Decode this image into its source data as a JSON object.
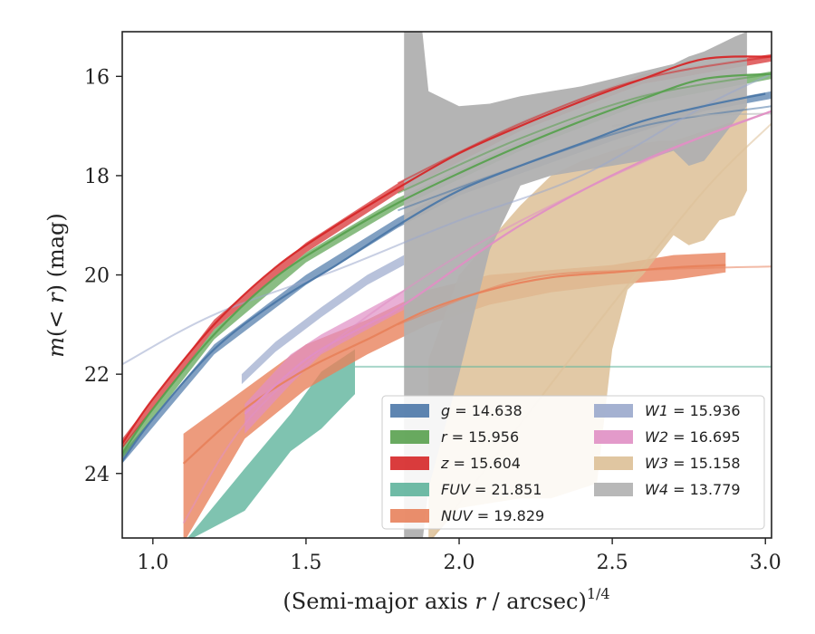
{
  "chart_data": {
    "type": "line",
    "title": "",
    "xlabel": "(Semi-major axis r / arcsec)^{1/4}",
    "xlabel_parts": {
      "main": "(Semi-major axis ",
      "var": "r",
      "rest": " / arcsec)",
      "sup": "1/4"
    },
    "ylabel": "m(< r) (mag)",
    "ylabel_parts": {
      "var": "m",
      "open": "(",
      "mid": "< r",
      "close": ") (mag)"
    },
    "xlim": [
      0.9,
      3.02
    ],
    "ylim": [
      25.3,
      15.1
    ],
    "y_inverted": true,
    "xticks": [
      1.0,
      1.5,
      2.0,
      2.5,
      3.0
    ],
    "xtick_labels": [
      "1.0",
      "1.5",
      "2.0",
      "2.5",
      "3.0"
    ],
    "yticks": [
      16,
      18,
      20,
      22,
      24
    ],
    "ytick_labels": [
      "16",
      "18",
      "20",
      "22",
      "24"
    ],
    "grid": false,
    "legend_position": "lower-right",
    "legend_columns": 2,
    "series": [
      {
        "key": "g",
        "name": "g = 14.638",
        "label_var": "g",
        "label_val": "= 14.638",
        "color": "#4c78a8",
        "curve": [
          [
            0.9,
            23.75
          ],
          [
            1.0,
            22.9
          ],
          [
            1.2,
            21.5
          ],
          [
            1.4,
            20.55
          ],
          [
            1.6,
            19.8
          ],
          [
            1.8,
            19.0
          ],
          [
            2.0,
            18.3
          ],
          [
            2.2,
            17.8
          ],
          [
            2.4,
            17.35
          ],
          [
            2.6,
            16.9
          ],
          [
            2.8,
            16.6
          ],
          [
            3.0,
            16.35
          ]
        ],
        "band": [
          [
            0.9,
            23.6,
            23.8
          ],
          [
            1.2,
            21.4,
            21.6
          ],
          [
            1.5,
            20.0,
            20.2
          ],
          [
            1.8,
            18.85,
            19.05
          ],
          [
            2.0,
            18.2,
            18.4
          ],
          [
            2.5,
            17.1,
            17.3
          ],
          [
            2.8,
            16.55,
            16.7
          ],
          [
            3.02,
            16.3,
            16.45
          ]
        ],
        "extrap": [
          [
            1.8,
            18.7
          ],
          [
            2.2,
            17.8
          ],
          [
            2.6,
            17.0
          ],
          [
            3.02,
            16.6
          ]
        ]
      },
      {
        "key": "r",
        "name": "r = 15.956",
        "label_var": "r",
        "label_val": "= 15.956",
        "color": "#59a14f",
        "curve": [
          [
            0.9,
            23.6
          ],
          [
            1.0,
            22.7
          ],
          [
            1.2,
            21.2
          ],
          [
            1.4,
            20.05
          ],
          [
            1.6,
            19.25
          ],
          [
            1.8,
            18.55
          ],
          [
            2.0,
            17.95
          ],
          [
            2.2,
            17.4
          ],
          [
            2.4,
            16.9
          ],
          [
            2.6,
            16.45
          ],
          [
            2.8,
            16.05
          ],
          [
            3.02,
            15.95
          ]
        ],
        "band": [
          [
            0.9,
            23.45,
            23.7
          ],
          [
            1.2,
            21.1,
            21.3
          ],
          [
            1.5,
            19.55,
            19.75
          ],
          [
            1.8,
            18.45,
            18.65
          ],
          [
            2.2,
            17.3,
            17.5
          ],
          [
            2.6,
            16.35,
            16.55
          ],
          [
            3.02,
            15.9,
            16.05
          ]
        ],
        "extrap": [
          [
            1.8,
            18.35
          ],
          [
            2.2,
            17.25
          ],
          [
            2.6,
            16.4
          ],
          [
            3.02,
            15.95
          ]
        ]
      },
      {
        "key": "z",
        "name": "z = 15.604",
        "label_var": "z",
        "label_val": "= 15.604",
        "color": "#d62728",
        "curve": [
          [
            0.9,
            23.4
          ],
          [
            1.0,
            22.5
          ],
          [
            1.2,
            21.0
          ],
          [
            1.4,
            19.85
          ],
          [
            1.6,
            19.0
          ],
          [
            1.8,
            18.25
          ],
          [
            2.0,
            17.55
          ],
          [
            2.2,
            17.0
          ],
          [
            2.4,
            16.5
          ],
          [
            2.6,
            16.05
          ],
          [
            2.8,
            15.65
          ],
          [
            3.02,
            15.6
          ]
        ],
        "band": [
          [
            0.9,
            23.3,
            23.5
          ],
          [
            1.2,
            20.9,
            21.1
          ],
          [
            1.5,
            19.35,
            19.55
          ],
          [
            1.8,
            18.15,
            18.35
          ],
          [
            2.2,
            16.9,
            17.1
          ],
          [
            2.6,
            15.95,
            16.15
          ],
          [
            3.02,
            15.55,
            15.7
          ]
        ],
        "extrap": [
          [
            1.8,
            18.15
          ],
          [
            2.2,
            16.95
          ],
          [
            2.6,
            16.05
          ],
          [
            3.02,
            15.6
          ]
        ]
      },
      {
        "key": "FUV",
        "name": "FUV = 21.851",
        "label_var": "FUV",
        "label_val": "= 21.851",
        "color": "#5fb49c",
        "curve": [
          [
            1.1,
            25.2
          ],
          [
            1.3,
            24.5
          ],
          [
            1.45,
            23.2
          ],
          [
            1.55,
            22.5
          ],
          [
            1.66,
            22.0
          ]
        ],
        "band": [
          [
            1.1,
            25.4,
            25.4
          ],
          [
            1.3,
            24.75,
            23.9
          ],
          [
            1.45,
            23.55,
            22.8
          ],
          [
            1.55,
            23.1,
            21.95
          ],
          [
            1.66,
            22.4,
            21.5
          ]
        ],
        "extrap": [
          [
            1.66,
            21.85
          ],
          [
            3.02,
            21.85
          ]
        ]
      },
      {
        "key": "NUV",
        "name": "NUV = 19.829",
        "label_var": "NUV",
        "label_val": "= 19.829",
        "color": "#e8825c",
        "curve": [
          [
            1.1,
            23.8
          ],
          [
            1.3,
            22.7
          ],
          [
            1.5,
            21.9
          ],
          [
            1.7,
            21.3
          ],
          [
            1.9,
            20.7
          ],
          [
            2.1,
            20.3
          ],
          [
            2.3,
            20.05
          ],
          [
            2.5,
            19.95
          ],
          [
            2.7,
            19.85
          ],
          [
            2.87,
            19.8
          ]
        ],
        "band": [
          [
            1.1,
            25.4,
            23.2
          ],
          [
            1.3,
            23.3,
            22.3
          ],
          [
            1.5,
            22.3,
            21.4
          ],
          [
            1.7,
            21.6,
            20.9
          ],
          [
            1.9,
            21.0,
            20.3
          ],
          [
            2.1,
            20.6,
            20.0
          ],
          [
            2.3,
            20.35,
            19.9
          ],
          [
            2.5,
            20.2,
            19.8
          ],
          [
            2.7,
            20.1,
            19.6
          ],
          [
            2.87,
            19.95,
            19.55
          ]
        ],
        "extrap": [
          [
            1.8,
            21.0
          ],
          [
            2.2,
            20.1
          ],
          [
            2.6,
            19.9
          ],
          [
            3.02,
            19.83
          ]
        ]
      },
      {
        "key": "W1",
        "name": "W1 = 15.936",
        "label_var": "W1",
        "label_val": "= 15.936",
        "color": "#9aa8cc",
        "curve": [
          [
            1.29,
            22.1
          ],
          [
            1.4,
            21.45
          ],
          [
            1.55,
            20.75
          ],
          [
            1.7,
            20.1
          ],
          [
            1.82,
            19.7
          ]
        ],
        "band": [
          [
            1.29,
            22.2,
            22.0
          ],
          [
            1.4,
            21.55,
            21.35
          ],
          [
            1.55,
            20.85,
            20.65
          ],
          [
            1.7,
            20.2,
            20.0
          ],
          [
            1.82,
            19.8,
            19.6
          ]
        ],
        "extrap": [
          [
            0.9,
            21.8
          ],
          [
            1.2,
            20.8
          ],
          [
            1.6,
            19.9
          ],
          [
            2.0,
            18.9
          ],
          [
            2.4,
            18.0
          ],
          [
            2.8,
            16.6
          ],
          [
            3.02,
            15.95
          ]
        ]
      },
      {
        "key": "W2",
        "name": "W2 = 16.695",
        "label_var": "W2",
        "label_val": "= 16.695",
        "color": "#e08fc4",
        "curve": [
          [
            1.3,
            22.8
          ],
          [
            1.5,
            21.7
          ],
          [
            1.7,
            21.0
          ],
          [
            1.82,
            20.6
          ],
          [
            2.2,
            19.0
          ],
          [
            2.6,
            17.7
          ],
          [
            3.02,
            16.7
          ]
        ],
        "band": [
          [
            1.3,
            23.2,
            22.6
          ],
          [
            1.45,
            22.2,
            21.6
          ],
          [
            1.55,
            21.6,
            21.2
          ],
          [
            1.7,
            21.1,
            20.7
          ],
          [
            1.82,
            20.7,
            20.3
          ]
        ],
        "extrap": [
          [
            1.1,
            25.0
          ],
          [
            1.3,
            23.0
          ],
          [
            1.6,
            21.3
          ],
          [
            2.0,
            19.6
          ],
          [
            2.4,
            18.3
          ],
          [
            2.8,
            17.2
          ],
          [
            3.02,
            16.7
          ]
        ]
      },
      {
        "key": "W3",
        "name": "W3 = 15.158",
        "label_var": "W3",
        "label_val": "= 15.158",
        "color": "#ddc097",
        "curve": [
          [
            2.0,
            20.5
          ],
          [
            2.3,
            18.5
          ],
          [
            2.6,
            17.6
          ],
          [
            2.8,
            17.3
          ],
          [
            3.0,
            17.0
          ]
        ],
        "band": [
          [
            1.9,
            25.4,
            21.7
          ],
          [
            2.0,
            24.7,
            20.0
          ],
          [
            2.1,
            24.6,
            19.3
          ],
          [
            2.2,
            24.5,
            18.6
          ],
          [
            2.3,
            24.5,
            18.0
          ],
          [
            2.4,
            24.3,
            17.7
          ],
          [
            2.45,
            24.2,
            17.6
          ],
          [
            2.5,
            21.5,
            17.5
          ],
          [
            2.55,
            20.3,
            17.4
          ],
          [
            2.6,
            20.0,
            17.35
          ],
          [
            2.65,
            19.6,
            17.3
          ],
          [
            2.7,
            19.2,
            17.3
          ],
          [
            2.75,
            19.4,
            17.2
          ],
          [
            2.8,
            19.3,
            17.1
          ],
          [
            2.85,
            18.9,
            17.0
          ],
          [
            2.9,
            18.8,
            16.9
          ],
          [
            2.94,
            18.3,
            16.6
          ]
        ],
        "extrap": [
          [
            1.9,
            25.4
          ],
          [
            2.2,
            23.0
          ],
          [
            2.5,
            20.6
          ],
          [
            2.8,
            18.3
          ],
          [
            3.02,
            16.95
          ]
        ]
      },
      {
        "key": "W4",
        "name": "W4 = 13.779",
        "label_var": "W4",
        "label_val": "= 13.779",
        "color": "#b0b0b0",
        "curve": [
          [
            1.82,
            17.7
          ],
          [
            2.0,
            17.3
          ],
          [
            2.3,
            17.0
          ],
          [
            2.6,
            16.8
          ],
          [
            2.94,
            16.7
          ]
        ],
        "band": [
          [
            1.82,
            25.4,
            15.1
          ],
          [
            1.88,
            25.4,
            15.1
          ],
          [
            1.9,
            24.3,
            16.3
          ],
          [
            2.0,
            22.0,
            16.6
          ],
          [
            2.1,
            19.5,
            16.55
          ],
          [
            2.2,
            18.2,
            16.4
          ],
          [
            2.3,
            18.0,
            16.3
          ],
          [
            2.4,
            17.9,
            16.2
          ],
          [
            2.5,
            17.8,
            16.05
          ],
          [
            2.6,
            17.7,
            15.9
          ],
          [
            2.7,
            17.5,
            15.75
          ],
          [
            2.75,
            17.8,
            15.6
          ],
          [
            2.8,
            17.7,
            15.5
          ],
          [
            2.85,
            17.3,
            15.35
          ],
          [
            2.9,
            16.9,
            15.2
          ],
          [
            2.94,
            16.6,
            15.1
          ]
        ],
        "extrap": [
          [
            2.5,
            17.0
          ],
          [
            2.75,
            16.8
          ],
          [
            3.02,
            16.75
          ]
        ]
      }
    ]
  }
}
